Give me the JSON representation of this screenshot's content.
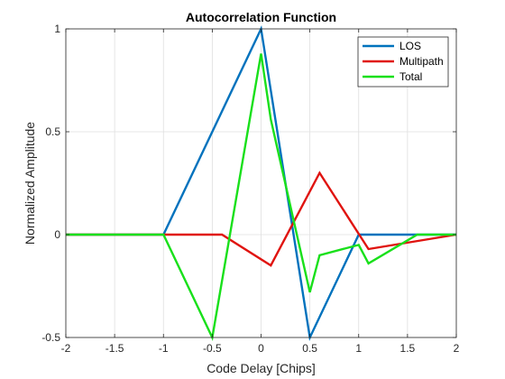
{
  "chart_data": {
    "type": "line",
    "title": "Autocorrelation Function",
    "xlabel": "Code Delay [Chips]",
    "ylabel": "Normalized Amplitude",
    "xlim": [
      -2,
      2
    ],
    "ylim": [
      -0.5,
      1
    ],
    "xticks": [
      "-2",
      "-1.5",
      "-1",
      "-0.5",
      "0",
      "0.5",
      "1",
      "1.5",
      "2"
    ],
    "yticks": [
      "-0.5",
      "0",
      "0.5",
      "1"
    ],
    "grid": true,
    "legend_position": "top-right",
    "series": [
      {
        "name": "LOS",
        "color": "#0072BD",
        "x": [
          -2,
          -1,
          0,
          0.5,
          1,
          2
        ],
        "y": [
          0,
          0,
          1,
          -0.5,
          0,
          0
        ]
      },
      {
        "name": "Multipath",
        "color": "#E0130F",
        "x": [
          -2,
          -1,
          -0.4,
          0.1,
          0.6,
          1.1,
          2
        ],
        "y": [
          0,
          0,
          0,
          -0.15,
          0.3,
          -0.07,
          0
        ]
      },
      {
        "name": "Total",
        "color": "#19E01B",
        "x": [
          -2,
          -1,
          -0.5,
          0,
          0.1,
          0.5,
          0.6,
          1.0,
          1.1,
          1.6,
          2
        ],
        "y": [
          0,
          0,
          -0.5,
          0.88,
          0.56,
          -0.28,
          -0.1,
          -0.05,
          -0.14,
          0,
          0
        ]
      }
    ]
  }
}
